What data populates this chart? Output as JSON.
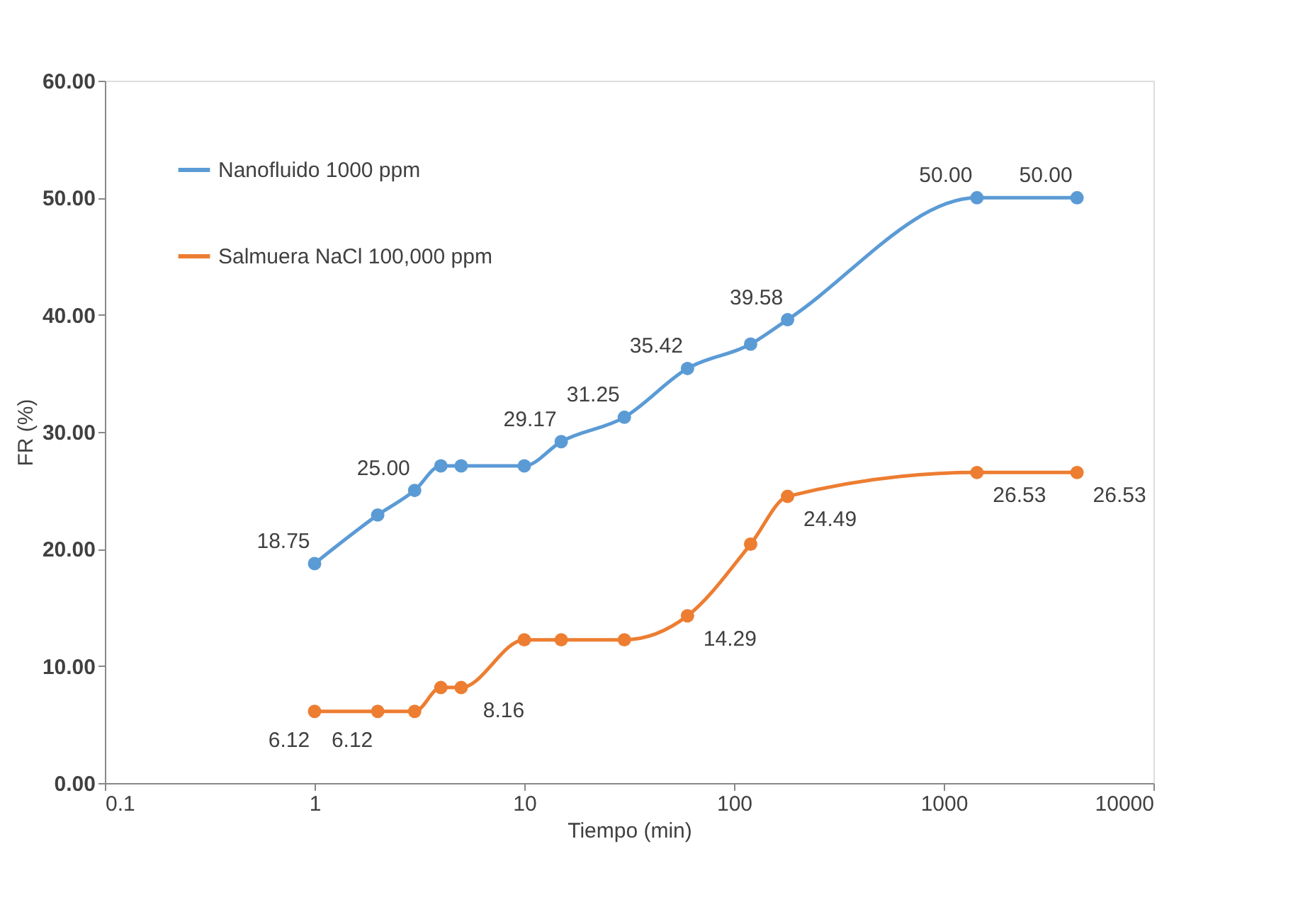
{
  "chart_data": {
    "type": "line",
    "xlabel": "Tiempo (min)",
    "ylabel": "FR (%)",
    "log": "x",
    "xlim": [
      0.1,
      10000
    ],
    "xticks": [
      0.1,
      1,
      10,
      100,
      1000,
      10000
    ],
    "ylim": [
      0,
      60
    ],
    "yticks": [
      {
        "value": 0,
        "label": "0.00"
      },
      {
        "value": 10,
        "label": "10.00"
      },
      {
        "value": 20,
        "label": "20.00"
      },
      {
        "value": 30,
        "label": "30.00"
      },
      {
        "value": 40,
        "label": "40.00"
      },
      {
        "value": 50,
        "label": "50.00"
      },
      {
        "value": 60,
        "label": "60.00"
      }
    ],
    "x": [
      1,
      2,
      3,
      4,
      5,
      10,
      15,
      30,
      60,
      120,
      180,
      1440,
      4320
    ],
    "series": [
      {
        "name": "Nanofluido 1000 ppm",
        "color": "#5b9bd5",
        "values": [
          18.75,
          22.9,
          25.0,
          27.1,
          27.1,
          27.1,
          29.17,
          31.25,
          35.42,
          37.5,
          39.58,
          50.0,
          50.0
        ],
        "value_labels": [
          "18.75",
          null,
          "25.00",
          null,
          null,
          null,
          "29.17",
          "31.25",
          "35.42",
          null,
          "39.58",
          "50.00",
          "50.00"
        ]
      },
      {
        "name": "Salmuera NaCl 100,000 ppm",
        "color": "#ed7d31",
        "values": [
          6.12,
          6.12,
          6.12,
          8.16,
          8.16,
          12.24,
          12.24,
          12.24,
          14.29,
          20.41,
          24.49,
          26.53,
          26.53
        ],
        "value_labels": [
          "6.12",
          "6.12",
          null,
          null,
          "8.16",
          null,
          null,
          null,
          "14.29",
          null,
          "24.49",
          "26.53",
          "26.53"
        ]
      }
    ],
    "marker": "circle",
    "line_style": "solid",
    "grid": false,
    "legend": "top left"
  }
}
